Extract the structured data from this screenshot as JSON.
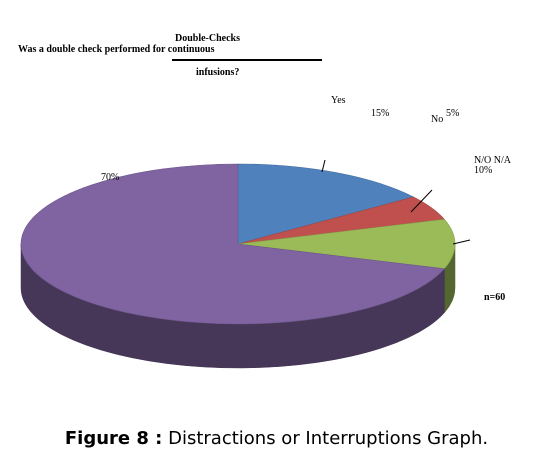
{
  "chart_data": {
    "type": "pie",
    "style": "3d",
    "title_line1": "Double-Checks",
    "title_line2": "Was a double check performed for continuous",
    "title_line3": "infusions?",
    "slices": [
      {
        "label": "Yes",
        "value": 15,
        "value_label": "15%",
        "color": "#4f81bd"
      },
      {
        "label": "No",
        "value": 5,
        "value_label": "5%",
        "color": "#c0504d"
      },
      {
        "label": "N/O N/A",
        "value": 10,
        "value_label": "10%",
        "color": "#9bbb59"
      },
      {
        "label": "",
        "value": 70,
        "value_label": "70%",
        "color": "#8064a2"
      }
    ],
    "sample_note": "n=60",
    "caption_bold": "Figure 8 :",
    "caption_text": " Distractions or Interruptions Graph."
  }
}
